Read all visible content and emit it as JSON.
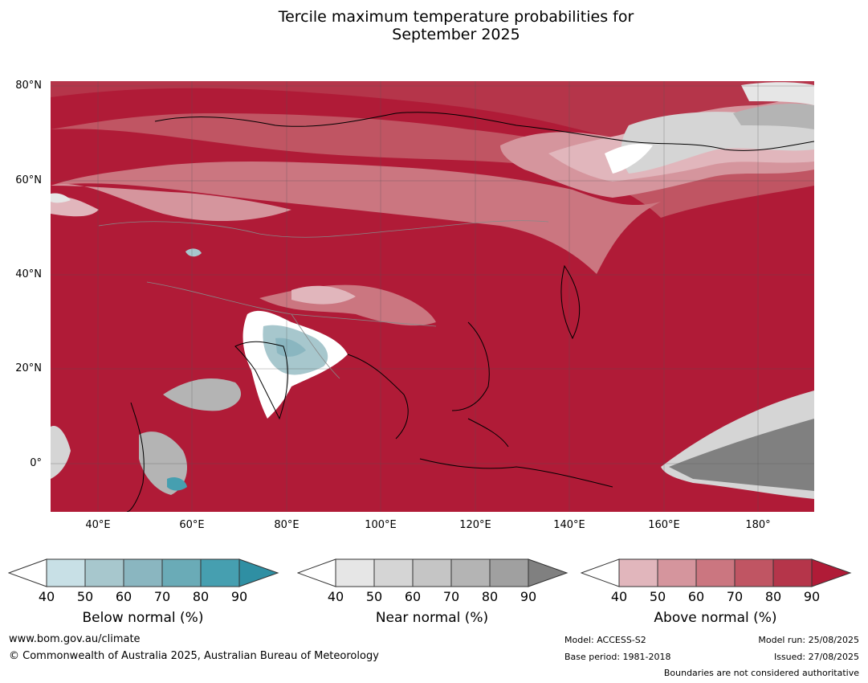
{
  "title_line1": "Tercile maximum temperature probabilities for",
  "title_line2": "September 2025",
  "lat_labels": [
    "80°N",
    "60°N",
    "40°N",
    "20°N",
    "0°"
  ],
  "lon_labels": [
    "40°E",
    "60°E",
    "80°E",
    "100°E",
    "120°E",
    "140°E",
    "160°E",
    "180°"
  ],
  "colorbars": [
    {
      "label": "Below normal (%)",
      "ticks": [
        "40",
        "50",
        "60",
        "70",
        "80",
        "90"
      ],
      "colors": [
        "#c8e0e6",
        "#a7c7cd",
        "#8ab6c0",
        "#6aabb7",
        "#469fb0",
        "#2f8fa3"
      ]
    },
    {
      "label": "Near normal (%)",
      "ticks": [
        "40",
        "50",
        "60",
        "70",
        "80",
        "90"
      ],
      "colors": [
        "#e6e6e6",
        "#d5d5d5",
        "#c5c5c5",
        "#b4b4b4",
        "#a0a0a0",
        "#808080"
      ]
    },
    {
      "label": "Above normal (%)",
      "ticks": [
        "40",
        "50",
        "60",
        "70",
        "80",
        "90"
      ],
      "colors": [
        "#e1b6bc",
        "#d5959d",
        "#cb7680",
        "#c05563",
        "#b5354a",
        "#b01b37"
      ]
    }
  ],
  "footer": {
    "url": "www.bom.gov.au/climate",
    "copyright": "© Commonwealth of Australia 2025, Australian Bureau of Meteorology",
    "model": "Model: ACCESS-S2",
    "base_period": "Base period: 1981-2018",
    "model_run": "Model run: 25/08/2025",
    "issued": "Issued: 27/08/2025",
    "disclaimer": "Boundaries are not considered authoritative"
  }
}
